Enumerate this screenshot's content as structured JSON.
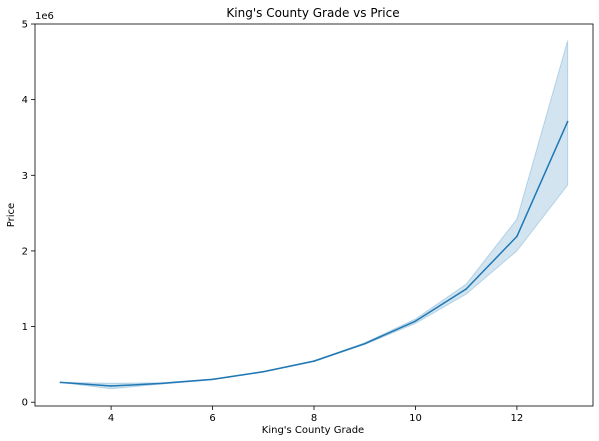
{
  "chart_data": {
    "type": "line",
    "title": "King's County Grade vs Price",
    "xlabel": "King's County Grade",
    "ylabel": "Price",
    "y_offset_label": "1e6",
    "xlim": [
      2.5,
      13.5
    ],
    "ylim": [
      -50000,
      5000000
    ],
    "x_ticks": [
      4,
      6,
      8,
      10,
      12
    ],
    "y_ticks": [
      0,
      1000000,
      2000000,
      3000000,
      4000000,
      5000000
    ],
    "y_tick_labels": [
      "0",
      "1",
      "2",
      "3",
      "4",
      "5"
    ],
    "x_tick_labels": [
      "4",
      "6",
      "8",
      "10",
      "12"
    ],
    "grid": false,
    "line_color": "#1f77b4",
    "band_color": "#1f77b4",
    "series": [
      {
        "x": [
          3,
          4,
          5,
          6,
          7,
          8,
          9,
          10,
          11,
          12,
          13
        ],
        "values": [
          262000,
          214000,
          249000,
          302000,
          403000,
          543000,
          774000,
          1072000,
          1497000,
          2192000,
          3710000
        ],
        "ci_low": [
          262000,
          178000,
          240000,
          297000,
          399000,
          538000,
          763000,
          1042000,
          1430000,
          2000000,
          2870000
        ],
        "ci_high": [
          262000,
          250000,
          258000,
          307000,
          407000,
          548000,
          785000,
          1100000,
          1560000,
          2420000,
          4780000
        ]
      }
    ]
  }
}
